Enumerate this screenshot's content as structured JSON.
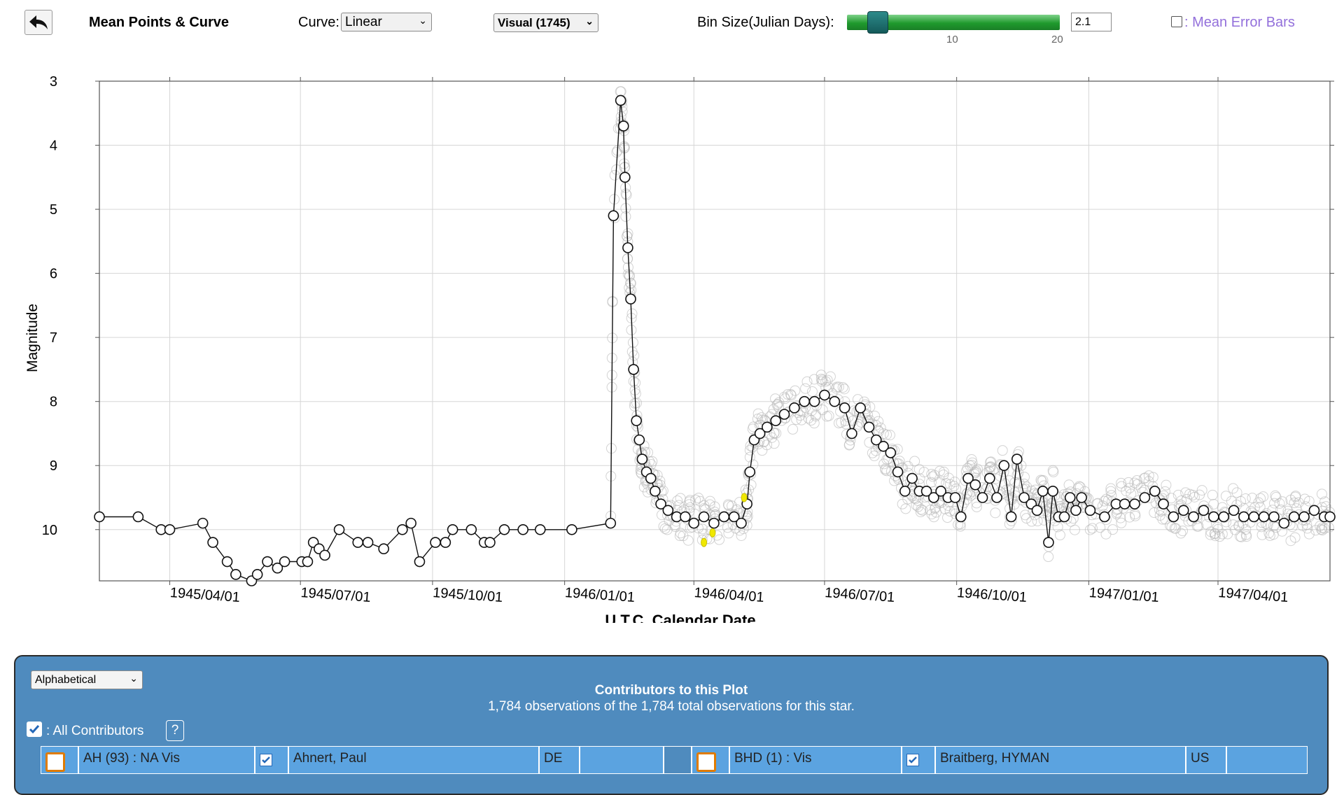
{
  "toolbar": {
    "back_icon": "back-arrow-icon",
    "title": "Mean Points & Curve",
    "curve_label": "Curve:",
    "curve_value": "Linear",
    "band_value": "Visual (1745)",
    "bin_label": "Bin Size(Julian Days):",
    "slider_tick_10": "10",
    "slider_tick_20": "20",
    "bin_value": "2.1",
    "slider_fraction": 0.105,
    "error_bars_label": ": Mean Error Bars",
    "error_bars_checked": false
  },
  "chart_data": {
    "type": "scatter",
    "xlabel": "U.T.C. Calendar Date",
    "ylabel": "Magnitude",
    "y_inverted": true,
    "ylim": [
      10.8,
      3
    ],
    "yticks": [
      3,
      4,
      5,
      6,
      7,
      8,
      9,
      10
    ],
    "xlim": [
      "1945-02-11",
      "1947-06-18"
    ],
    "xticks": [
      "1945/04/01",
      "1945/07/01",
      "1945/10/01",
      "1946/01/01",
      "1946/04/01",
      "1946/07/01",
      "1946/10/01",
      "1947/01/01",
      "1947/04/01"
    ],
    "grid": true,
    "series": [
      {
        "kind": "mean-points-curve",
        "points": [
          [
            "1945-02-11",
            9.8
          ],
          [
            "1945-03-10",
            9.8
          ],
          [
            "1945-03-26",
            10.0
          ],
          [
            "1945-04-01",
            10.0
          ],
          [
            "1945-04-24",
            9.9
          ],
          [
            "1945-05-01",
            10.2
          ],
          [
            "1945-05-11",
            10.5
          ],
          [
            "1945-05-17",
            10.7
          ],
          [
            "1945-05-28",
            10.8
          ],
          [
            "1945-06-01",
            10.7
          ],
          [
            "1945-06-08",
            10.5
          ],
          [
            "1945-06-15",
            10.6
          ],
          [
            "1945-06-20",
            10.5
          ],
          [
            "1945-07-02",
            10.5
          ],
          [
            "1945-07-06",
            10.5
          ],
          [
            "1945-07-10",
            10.2
          ],
          [
            "1945-07-14",
            10.3
          ],
          [
            "1945-07-18",
            10.4
          ],
          [
            "1945-07-28",
            10.0
          ],
          [
            "1945-08-10",
            10.2
          ],
          [
            "1945-08-17",
            10.2
          ],
          [
            "1945-08-28",
            10.3
          ],
          [
            "1945-09-10",
            10.0
          ],
          [
            "1945-09-16",
            9.9
          ],
          [
            "1945-09-22",
            10.5
          ],
          [
            "1945-10-03",
            10.2
          ],
          [
            "1945-10-10",
            10.2
          ],
          [
            "1945-10-15",
            10.0
          ],
          [
            "1945-10-28",
            10.0
          ],
          [
            "1945-11-06",
            10.2
          ],
          [
            "1945-11-10",
            10.2
          ],
          [
            "1945-11-20",
            10.0
          ],
          [
            "1945-12-03",
            10.0
          ],
          [
            "1945-12-15",
            10.0
          ],
          [
            "1946-01-06",
            10.0
          ],
          [
            "1946-02-02",
            9.9
          ],
          [
            "1946-02-04",
            5.1
          ],
          [
            "1946-02-09",
            3.3
          ],
          [
            "1946-02-11",
            3.7
          ],
          [
            "1946-02-12",
            4.5
          ],
          [
            "1946-02-14",
            5.6
          ],
          [
            "1946-02-16",
            6.4
          ],
          [
            "1946-02-18",
            7.5
          ],
          [
            "1946-02-20",
            8.3
          ],
          [
            "1946-02-22",
            8.6
          ],
          [
            "1946-02-24",
            8.9
          ],
          [
            "1946-02-27",
            9.1
          ],
          [
            "1946-03-02",
            9.2
          ],
          [
            "1946-03-05",
            9.4
          ],
          [
            "1946-03-09",
            9.6
          ],
          [
            "1946-03-14",
            9.7
          ],
          [
            "1946-03-20",
            9.8
          ],
          [
            "1946-03-26",
            9.8
          ],
          [
            "1946-04-01",
            9.9
          ],
          [
            "1946-04-08",
            9.8
          ],
          [
            "1946-04-15",
            9.9
          ],
          [
            "1946-04-22",
            9.8
          ],
          [
            "1946-04-29",
            9.8
          ],
          [
            "1946-05-04",
            9.9
          ],
          [
            "1946-05-08",
            9.6
          ],
          [
            "1946-05-10",
            9.1
          ],
          [
            "1946-05-13",
            8.6
          ],
          [
            "1946-05-17",
            8.5
          ],
          [
            "1946-05-22",
            8.4
          ],
          [
            "1946-05-28",
            8.3
          ],
          [
            "1946-06-03",
            8.2
          ],
          [
            "1946-06-10",
            8.1
          ],
          [
            "1946-06-17",
            8.0
          ],
          [
            "1946-06-24",
            8.0
          ],
          [
            "1946-07-01",
            7.9
          ],
          [
            "1946-07-08",
            8.0
          ],
          [
            "1946-07-15",
            8.1
          ],
          [
            "1946-07-20",
            8.5
          ],
          [
            "1946-07-26",
            8.1
          ],
          [
            "1946-08-01",
            8.4
          ],
          [
            "1946-08-06",
            8.6
          ],
          [
            "1946-08-11",
            8.7
          ],
          [
            "1946-08-16",
            8.8
          ],
          [
            "1946-08-21",
            9.1
          ],
          [
            "1946-08-26",
            9.4
          ],
          [
            "1946-08-31",
            9.2
          ],
          [
            "1946-09-05",
            9.4
          ],
          [
            "1946-09-10",
            9.4
          ],
          [
            "1946-09-15",
            9.5
          ],
          [
            "1946-09-20",
            9.4
          ],
          [
            "1946-09-25",
            9.5
          ],
          [
            "1946-09-30",
            9.5
          ],
          [
            "1946-10-04",
            9.8
          ],
          [
            "1946-10-09",
            9.2
          ],
          [
            "1946-10-14",
            9.3
          ],
          [
            "1946-10-19",
            9.5
          ],
          [
            "1946-10-24",
            9.2
          ],
          [
            "1946-10-29",
            9.5
          ],
          [
            "1946-11-03",
            9.0
          ],
          [
            "1946-11-08",
            9.8
          ],
          [
            "1946-11-12",
            8.9
          ],
          [
            "1946-11-17",
            9.5
          ],
          [
            "1946-11-22",
            9.6
          ],
          [
            "1946-11-26",
            9.7
          ],
          [
            "1946-11-30",
            9.4
          ],
          [
            "1946-12-04",
            10.2
          ],
          [
            "1946-12-07",
            9.4
          ],
          [
            "1946-12-11",
            9.8
          ],
          [
            "1946-12-15",
            9.8
          ],
          [
            "1946-12-19",
            9.5
          ],
          [
            "1946-12-23",
            9.7
          ],
          [
            "1946-12-27",
            9.5
          ],
          [
            "1947-01-02",
            9.7
          ],
          [
            "1947-01-12",
            9.8
          ],
          [
            "1947-01-20",
            9.6
          ],
          [
            "1947-01-26",
            9.6
          ],
          [
            "1947-02-02",
            9.6
          ],
          [
            "1947-02-09",
            9.5
          ],
          [
            "1947-02-16",
            9.4
          ],
          [
            "1947-02-22",
            9.6
          ],
          [
            "1947-03-01",
            9.8
          ],
          [
            "1947-03-08",
            9.7
          ],
          [
            "1947-03-15",
            9.8
          ],
          [
            "1947-03-22",
            9.7
          ],
          [
            "1947-03-29",
            9.8
          ],
          [
            "1947-04-05",
            9.8
          ],
          [
            "1947-04-12",
            9.7
          ],
          [
            "1947-04-19",
            9.8
          ],
          [
            "1947-04-26",
            9.8
          ],
          [
            "1947-05-03",
            9.8
          ],
          [
            "1947-05-10",
            9.8
          ],
          [
            "1947-05-17",
            9.9
          ],
          [
            "1947-05-24",
            9.8
          ],
          [
            "1947-05-31",
            9.8
          ],
          [
            "1947-06-07",
            9.7
          ],
          [
            "1947-06-14",
            9.8
          ],
          [
            "1947-06-18",
            9.8
          ]
        ]
      },
      {
        "kind": "raw-observations",
        "approx_count": 1745,
        "marker": "faint gray open circle"
      },
      {
        "kind": "highlighted-observations",
        "color": "#f0e800",
        "points": [
          [
            "1946-04-08",
            10.2
          ],
          [
            "1946-04-14",
            10.05
          ],
          [
            "1946-05-06",
            9.5
          ]
        ]
      }
    ]
  },
  "contributors": {
    "sort_value": "Alphabetical",
    "title": "Contributors to this Plot",
    "subtitle": "1,784 observations of the 1,784 total observations for this star.",
    "all_label": ": All Contributors",
    "all_checked": true,
    "help_label": "?",
    "rows": [
      [
        "AH (93) : NA Vis",
        "Ahnert, Paul",
        "DE"
      ],
      [
        "BHD (1) : Vis",
        "Braitberg, HYMAN",
        "US"
      ]
    ]
  },
  "colors": {
    "panel_bg": "#4f8bbe",
    "cell_bg": "#5ba3e0",
    "swatch_border": "#e07b00",
    "accent_purple": "#9370db",
    "slider_green": "#1f9a2d"
  }
}
